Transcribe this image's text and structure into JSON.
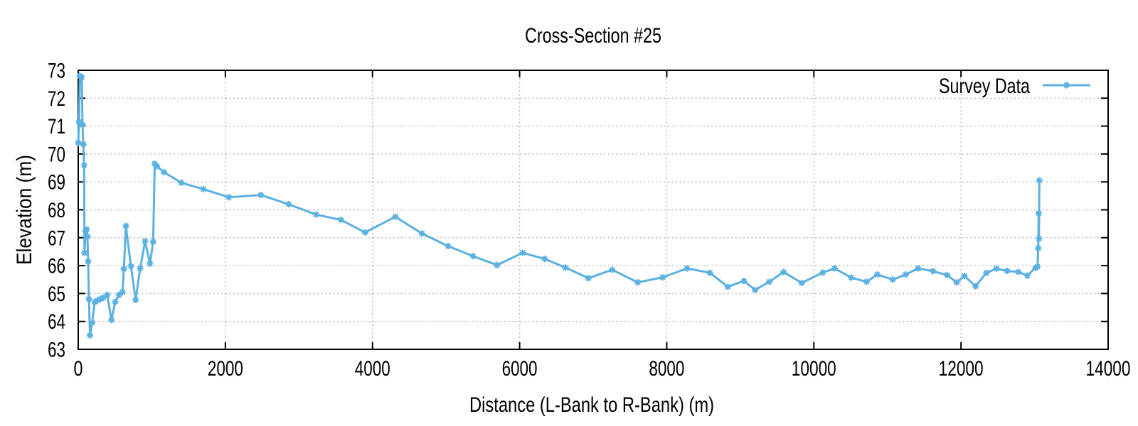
{
  "chart_data": {
    "type": "line",
    "title": "Cross-Section #25",
    "xlabel": "Distance (L-Bank to R-Bank) (m)",
    "ylabel": "Elevation (m)",
    "xlim": [
      0,
      14000
    ],
    "ylim": [
      63,
      73
    ],
    "xticks": [
      0,
      2000,
      4000,
      6000,
      8000,
      10000,
      12000,
      14000
    ],
    "yticks": [
      63,
      64,
      65,
      66,
      67,
      68,
      69,
      70,
      71,
      72,
      73
    ],
    "grid": true,
    "legend_position": "top-right-inside",
    "colors": {
      "series": "#5bb0e2",
      "grid": "#b0b0b0",
      "border": "#000000",
      "text": "#000000",
      "background": "#ffffff"
    },
    "marker": "asterisk-star",
    "series": [
      {
        "name": "Survey Data",
        "points": [
          [
            0,
            70.4
          ],
          [
            10,
            71.15
          ],
          [
            22,
            72.8
          ],
          [
            48,
            72.75
          ],
          [
            58,
            71.05
          ],
          [
            70,
            70.35
          ],
          [
            80,
            69.6
          ],
          [
            85,
            66.45
          ],
          [
            100,
            67.25
          ],
          [
            113,
            67.3
          ],
          [
            125,
            67.05
          ],
          [
            135,
            66.15
          ],
          [
            145,
            64.8
          ],
          [
            160,
            63.5
          ],
          [
            188,
            63.95
          ],
          [
            225,
            64.7
          ],
          [
            262,
            64.75
          ],
          [
            300,
            64.8
          ],
          [
            340,
            64.85
          ],
          [
            394,
            64.95
          ],
          [
            451,
            64.05
          ],
          [
            503,
            64.7
          ],
          [
            553,
            64.95
          ],
          [
            601,
            65.05
          ],
          [
            620,
            65.88
          ],
          [
            648,
            67.42
          ],
          [
            716,
            65.98
          ],
          [
            780,
            64.77
          ],
          [
            842,
            65.9
          ],
          [
            909,
            66.87
          ],
          [
            975,
            66.07
          ],
          [
            1018,
            66.85
          ],
          [
            1040,
            69.65
          ],
          [
            1068,
            69.56
          ],
          [
            1165,
            69.35
          ],
          [
            1400,
            68.97
          ],
          [
            1700,
            68.74
          ],
          [
            2048,
            68.45
          ],
          [
            2482,
            68.53
          ],
          [
            2860,
            68.2
          ],
          [
            3232,
            67.83
          ],
          [
            3570,
            67.64
          ],
          [
            3900,
            67.19
          ],
          [
            4310,
            67.75
          ],
          [
            4672,
            67.15
          ],
          [
            5028,
            66.7
          ],
          [
            5366,
            66.34
          ],
          [
            5694,
            66.02
          ],
          [
            6042,
            66.46
          ],
          [
            6340,
            66.24
          ],
          [
            6623,
            65.93
          ],
          [
            6935,
            65.55
          ],
          [
            7258,
            65.85
          ],
          [
            7606,
            65.4
          ],
          [
            7944,
            65.58
          ],
          [
            8276,
            65.9
          ],
          [
            8588,
            65.74
          ],
          [
            8830,
            65.24
          ],
          [
            9049,
            65.45
          ],
          [
            9201,
            65.13
          ],
          [
            9394,
            65.42
          ],
          [
            9588,
            65.77
          ],
          [
            9835,
            65.38
          ],
          [
            10120,
            65.75
          ],
          [
            10282,
            65.9
          ],
          [
            10508,
            65.57
          ],
          [
            10717,
            65.42
          ],
          [
            10862,
            65.68
          ],
          [
            11071,
            65.5
          ],
          [
            11248,
            65.68
          ],
          [
            11416,
            65.9
          ],
          [
            11619,
            65.8
          ],
          [
            11812,
            65.66
          ],
          [
            11941,
            65.4
          ],
          [
            12047,
            65.63
          ],
          [
            12199,
            65.26
          ],
          [
            12344,
            65.74
          ],
          [
            12482,
            65.89
          ],
          [
            12627,
            65.81
          ],
          [
            12779,
            65.77
          ],
          [
            12901,
            65.64
          ],
          [
            13012,
            65.92
          ],
          [
            13040,
            65.96
          ],
          [
            13050,
            66.63
          ],
          [
            13056,
            67.88
          ],
          [
            13060,
            66.97
          ],
          [
            13065,
            69.05
          ]
        ]
      }
    ]
  }
}
